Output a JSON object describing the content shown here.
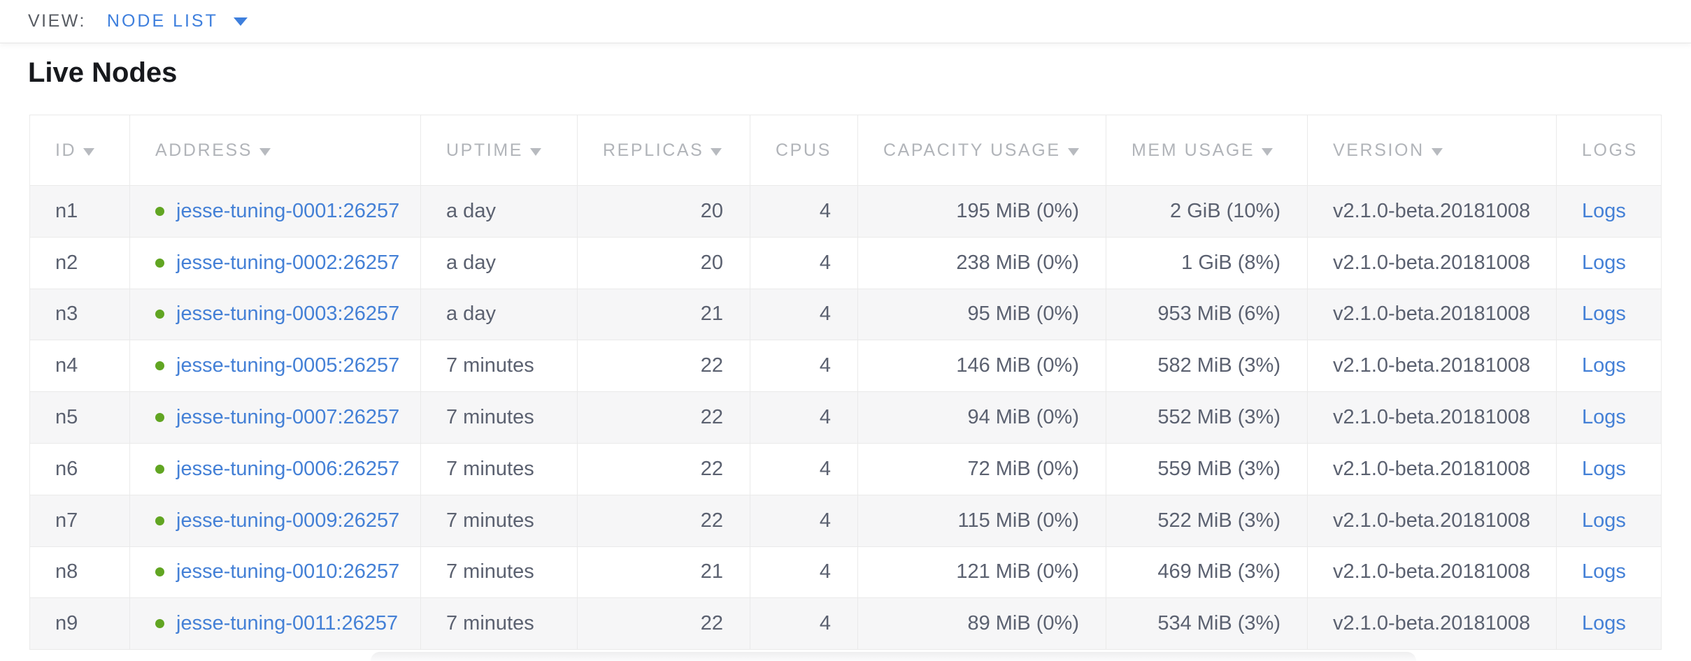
{
  "view_bar": {
    "label": "VIEW:",
    "selected": "NODE LIST"
  },
  "page": {
    "title": "Live Nodes"
  },
  "table": {
    "columns": [
      {
        "key": "id",
        "label": "ID",
        "sortable": true,
        "cell_align": "left"
      },
      {
        "key": "address",
        "label": "ADDRESS",
        "sortable": true,
        "cell_align": "left"
      },
      {
        "key": "uptime",
        "label": "UPTIME",
        "sortable": true,
        "cell_align": "left"
      },
      {
        "key": "replicas",
        "label": "REPLICAS",
        "sortable": true,
        "cell_align": "right"
      },
      {
        "key": "cpus",
        "label": "CPUS",
        "sortable": false,
        "cell_align": "right"
      },
      {
        "key": "capacity",
        "label": "CAPACITY USAGE",
        "sortable": true,
        "cell_align": "right"
      },
      {
        "key": "mem",
        "label": "MEM USAGE",
        "sortable": true,
        "cell_align": "right"
      },
      {
        "key": "version",
        "label": "VERSION",
        "sortable": true,
        "cell_align": "left"
      },
      {
        "key": "logs",
        "label": "LOGS",
        "sortable": false,
        "cell_align": "left"
      }
    ],
    "rows": [
      {
        "id": "n1",
        "address": "jesse-tuning-0001:26257",
        "uptime": "a day",
        "replicas": "20",
        "cpus": "4",
        "capacity": "195 MiB (0%)",
        "mem": "2 GiB (10%)",
        "version": "v2.1.0-beta.20181008",
        "logs": "Logs"
      },
      {
        "id": "n2",
        "address": "jesse-tuning-0002:26257",
        "uptime": "a day",
        "replicas": "20",
        "cpus": "4",
        "capacity": "238 MiB (0%)",
        "mem": "1 GiB (8%)",
        "version": "v2.1.0-beta.20181008",
        "logs": "Logs"
      },
      {
        "id": "n3",
        "address": "jesse-tuning-0003:26257",
        "uptime": "a day",
        "replicas": "21",
        "cpus": "4",
        "capacity": "95 MiB (0%)",
        "mem": "953 MiB (6%)",
        "version": "v2.1.0-beta.20181008",
        "logs": "Logs"
      },
      {
        "id": "n4",
        "address": "jesse-tuning-0005:26257",
        "uptime": "7 minutes",
        "replicas": "22",
        "cpus": "4",
        "capacity": "146 MiB (0%)",
        "mem": "582 MiB (3%)",
        "version": "v2.1.0-beta.20181008",
        "logs": "Logs"
      },
      {
        "id": "n5",
        "address": "jesse-tuning-0007:26257",
        "uptime": "7 minutes",
        "replicas": "22",
        "cpus": "4",
        "capacity": "94 MiB (0%)",
        "mem": "552 MiB (3%)",
        "version": "v2.1.0-beta.20181008",
        "logs": "Logs"
      },
      {
        "id": "n6",
        "address": "jesse-tuning-0006:26257",
        "uptime": "7 minutes",
        "replicas": "22",
        "cpus": "4",
        "capacity": "72 MiB (0%)",
        "mem": "559 MiB (3%)",
        "version": "v2.1.0-beta.20181008",
        "logs": "Logs"
      },
      {
        "id": "n7",
        "address": "jesse-tuning-0009:26257",
        "uptime": "7 minutes",
        "replicas": "22",
        "cpus": "4",
        "capacity": "115 MiB (0%)",
        "mem": "522 MiB (3%)",
        "version": "v2.1.0-beta.20181008",
        "logs": "Logs"
      },
      {
        "id": "n8",
        "address": "jesse-tuning-0010:26257",
        "uptime": "7 minutes",
        "replicas": "21",
        "cpus": "4",
        "capacity": "121 MiB (0%)",
        "mem": "469 MiB (3%)",
        "version": "v2.1.0-beta.20181008",
        "logs": "Logs"
      },
      {
        "id": "n9",
        "address": "jesse-tuning-0011:26257",
        "uptime": "7 minutes",
        "replicas": "22",
        "cpus": "4",
        "capacity": "89 MiB (0%)",
        "mem": "534 MiB (3%)",
        "version": "v2.1.0-beta.20181008",
        "logs": "Logs"
      }
    ]
  },
  "colors": {
    "link": "#4480d6",
    "status_dot": "#61a522",
    "header_text": "#b1b4b9",
    "cell_text": "#5b6170",
    "accent_blue": "#3e7fdd"
  }
}
